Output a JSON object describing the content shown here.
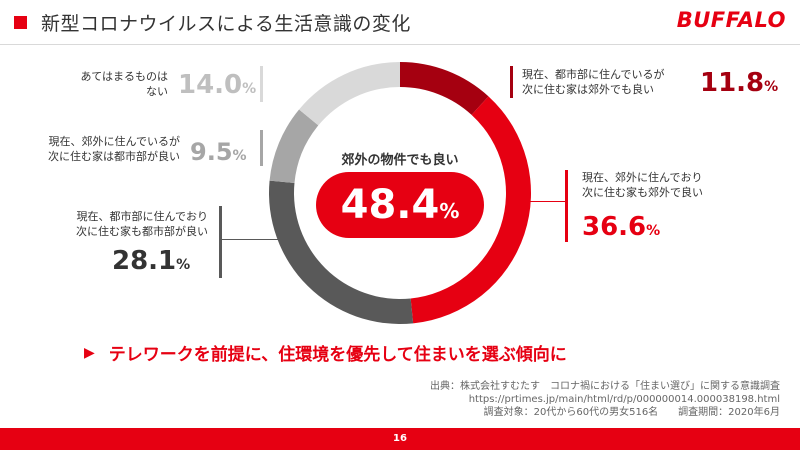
{
  "header": {
    "title": "新型コロナウイルスによる生活意識の変化",
    "logo": "BUFFALO"
  },
  "chart_data": {
    "type": "pie",
    "variant": "donut",
    "center_label": "郊外の物件でも良い",
    "center_value": "48.4",
    "center_unit": "%",
    "series": [
      {
        "label": "現在、都市部に住んでいるが\n次に住む家は郊外でも良い",
        "value": 11.8,
        "value_text": "11.8",
        "color": "#a50010"
      },
      {
        "label": "現在、郊外に住んでおり\n次に住む家も郊外で良い",
        "value": 36.6,
        "value_text": "36.6",
        "color": "#e60012"
      },
      {
        "label": "現在、都市部に住んでおり\n次に住む家も都市部が良い",
        "value": 28.1,
        "value_text": "28.1",
        "color": "#595959"
      },
      {
        "label": "現在、郊外に住んでいるが\n次に住む家は都市部が良い",
        "value": 9.5,
        "value_text": "9.5",
        "color": "#a6a6a6"
      },
      {
        "label": "あてはまるものは\nない",
        "value": 14.0,
        "value_text": "14.0",
        "color": "#d9d9d9"
      }
    ],
    "unit": "%"
  },
  "headline": "テレワークを前提に、住環境を優先して住まいを選ぶ傾向に",
  "source": {
    "line1": "出典：株式会社すむたす　コロナ禍における「住まい選び」に関する意識調査",
    "line2": "https://prtimes.jp/main/html/rd/p/000000014.000038198.html",
    "line3": "調査対象：20代から60代の男女516名　　調査期間：2020年6月"
  },
  "footer": {
    "page_number": "16"
  }
}
